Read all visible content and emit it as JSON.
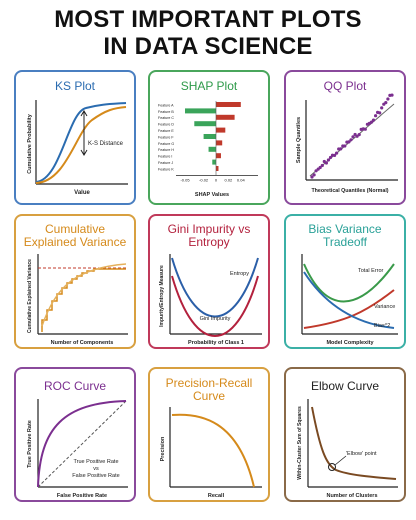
{
  "page_title": [
    "MOST IMPORTANT PLOTS",
    "IN DATA SCIENCE"
  ],
  "colors": {
    "blue": "#2b6cb0",
    "green": "#2e9a4a",
    "purple": "#7b2f8f",
    "orange": "#d58a1b",
    "crimson": "#b3213d",
    "teal": "#2aa198",
    "red": "#d23b3b",
    "brown": "#7a4a22"
  },
  "cards": {
    "ks": {
      "title": "KS Plot",
      "ylabel": "Cumulative Probability",
      "xlabel": "Value",
      "annotation": "K-S Distance"
    },
    "shap": {
      "title": "SHAP Plot",
      "features": [
        "Feature A",
        "Feature B",
        "Feature C",
        "Feature D",
        "Feature E",
        "Feature F",
        "Feature G",
        "Feature H",
        "Feature I",
        "Feature J",
        "Feature K"
      ],
      "values": [
        0.04,
        -0.05,
        0.03,
        -0.035,
        0.015,
        -0.02,
        0.01,
        -0.012,
        0.008,
        -0.006,
        0.004
      ],
      "ticks": [
        "-0.05",
        "-0.02",
        "0",
        "0.02",
        "0.04"
      ],
      "xlabel": "SHAP Values"
    },
    "qq": {
      "title": "QQ Plot",
      "ylabel": "Sample Quantiles",
      "xlabel": "Theoretical Quantiles (Normal)"
    },
    "cumvar": {
      "title": [
        "Cumulative",
        "Explained Variance"
      ],
      "ylabel": "Cumulative Explained Variance",
      "xlabel": "Number of Components"
    },
    "gini": {
      "title": [
        "Gini Impurity vs",
        "Entropy"
      ],
      "ylabel": "Impurity/Entropy Measure",
      "xlabel": "Probability of Class 1",
      "label_entropy": "Entropy",
      "label_gini": "Gini Impurity"
    },
    "biasvar": {
      "title": [
        "Bias Variance",
        "Tradeoff"
      ],
      "xlabel": "Model Complexity",
      "label_total": "Total Error",
      "label_variance": "Variance",
      "label_bias": "Bias^2"
    },
    "roc": {
      "title": "ROC Curve",
      "ylabel": "True Positive Rate",
      "xlabel": "False Positive Rate",
      "legend": [
        "True Positive Rate",
        "vs",
        "False Positive Rate"
      ]
    },
    "pr": {
      "title": [
        "Precision-Recall",
        "Curve"
      ],
      "ylabel": "Precision",
      "xlabel": "Recall"
    },
    "elbow": {
      "title": "Elbow Curve",
      "ylabel": "Within-Cluster Sum of Squares",
      "xlabel": "Number of Clusters",
      "annotation": "'Elbow' point"
    }
  }
}
